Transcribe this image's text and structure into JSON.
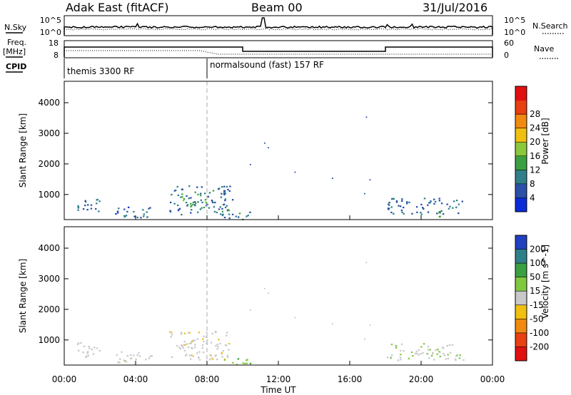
{
  "header": {
    "station": "Adak East (fitACF)",
    "beam": "Beam 00",
    "date": "31/Jul/2016"
  },
  "top_panels": {
    "nsky_label": "N.Sky",
    "nsearch_label": "N.Search",
    "nsky_ticks": [
      "10^5",
      "10^0"
    ],
    "nsearch_ticks": [
      "10^5",
      "10^0"
    ],
    "freq_label_1": "Freq.",
    "freq_label_2": "[MHz]",
    "freq_ticks": [
      "18",
      "8"
    ],
    "nave_label": "Nave",
    "nave_ticks": [
      "60",
      "0"
    ],
    "cpid_label": "CPID",
    "modes": [
      {
        "label": "themis 3300 RF",
        "start_hour": 0,
        "end_hour": 8
      },
      {
        "label": "normalsound (fast) 157 RF",
        "start_hour": 8,
        "end_hour": 24
      }
    ]
  },
  "chart_data": [
    {
      "type": "heatmap",
      "title": "",
      "ylabel": "Slant Range [km]",
      "xlabel": "",
      "ylim": [
        180,
        4700
      ],
      "yticks": [
        1000,
        2000,
        3000,
        4000
      ],
      "xlim": [
        0,
        24
      ],
      "colorbar": {
        "label": "Power [dB]",
        "ticks": [
          "4",
          "8",
          "12",
          "16",
          "20",
          "24",
          "28"
        ],
        "levels": [
          0,
          4,
          8,
          12,
          16,
          20,
          24,
          28,
          32
        ],
        "colors": [
          "#0a2bd8",
          "#2a50a8",
          "#2f7f8a",
          "#3aa042",
          "#8ac83c",
          "#f0c010",
          "#f08a10",
          "#e84010",
          "#e01010"
        ]
      },
      "patches": [
        {
          "t0": 0.6,
          "t1": 2.0,
          "r0": 450,
          "r1": 950,
          "value": 8
        },
        {
          "t0": 2.8,
          "t1": 4.9,
          "r0": 250,
          "r1": 650,
          "value": 7
        },
        {
          "t0": 5.8,
          "t1": 9.4,
          "r0": 350,
          "r1": 1300,
          "value": 9
        },
        {
          "t0": 6.5,
          "t1": 8.0,
          "r0": 550,
          "r1": 1050,
          "value": 14
        },
        {
          "t0": 8.8,
          "t1": 10.4,
          "r0": 200,
          "r1": 450,
          "value": 10
        },
        {
          "t0": 18.0,
          "t1": 22.4,
          "r0": 350,
          "r1": 900,
          "value": 8
        },
        {
          "t0": 20.4,
          "t1": 21.4,
          "r0": 250,
          "r1": 450,
          "value": 15
        }
      ]
    },
    {
      "type": "heatmap",
      "title": "",
      "ylabel": "Slant Range [km]",
      "xlabel": "Time UT",
      "ylim": [
        180,
        4700
      ],
      "yticks": [
        1000,
        2000,
        3000,
        4000
      ],
      "xlim": [
        0,
        24
      ],
      "xticks": [
        "00:00",
        "04:00",
        "08:00",
        "12:00",
        "16:00",
        "20:00",
        "00:00"
      ],
      "colorbar": {
        "label": "Velocity [m s^-1]",
        "ticks": [
          "200",
          "100",
          "50",
          "15",
          "-15",
          "-50",
          "-100",
          "-200"
        ],
        "levels": [
          200,
          100,
          50,
          15,
          -15,
          -50,
          -100,
          -200
        ],
        "colors": [
          "#2040c0",
          "#2f7f8a",
          "#3aa042",
          "#80c840",
          "#c8c8c8",
          "#f0c010",
          "#f08a10",
          "#e84010",
          "#e01010"
        ]
      },
      "patches": [
        {
          "t0": 0.6,
          "t1": 2.0,
          "r0": 450,
          "r1": 950,
          "value": 0
        },
        {
          "t0": 2.8,
          "t1": 4.9,
          "r0": 250,
          "r1": 650,
          "value": 5
        },
        {
          "t0": 5.8,
          "t1": 9.4,
          "r0": 350,
          "r1": 1300,
          "value": -5
        },
        {
          "t0": 8.8,
          "t1": 10.4,
          "r0": 200,
          "r1": 450,
          "value": 40
        },
        {
          "t0": 18.0,
          "t1": 22.4,
          "r0": 350,
          "r1": 900,
          "value": 10
        }
      ]
    }
  ]
}
